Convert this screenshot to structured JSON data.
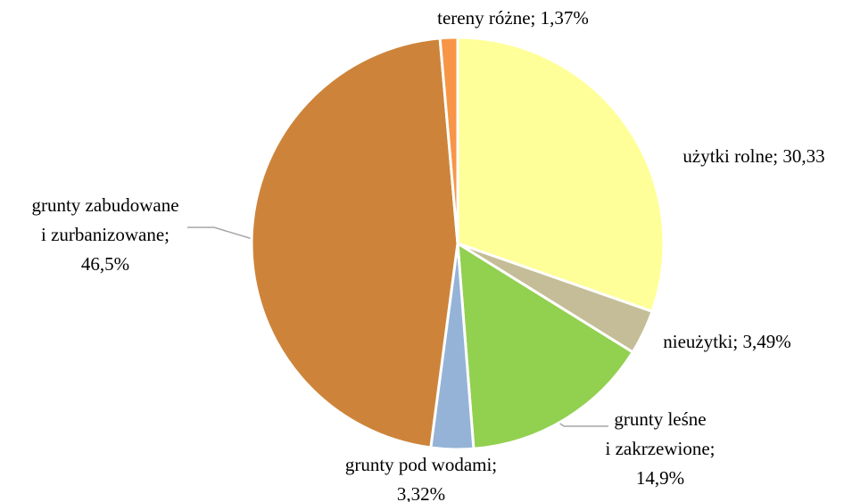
{
  "chart_data": {
    "type": "pie",
    "values": [
      30.33,
      3.49,
      14.9,
      3.32,
      46.5,
      1.37
    ],
    "value_labels": [
      [
        "użytki rolne; 30,33"
      ],
      [
        "nieużytki; 3,49%"
      ],
      [
        "grunty leśne",
        "i zakrzewione;",
        "14,9%"
      ],
      [
        "grunty pod wodami;",
        "3,32%"
      ],
      [
        "grunty zabudowane",
        "i zurbanizowane;",
        "46,5%"
      ],
      [
        "tereny różne; 1,37%"
      ]
    ],
    "colors": [
      "#ffff99",
      "#c4bd97",
      "#92d050",
      "#95b3d7",
      "#cd843a",
      "#f79646"
    ]
  }
}
